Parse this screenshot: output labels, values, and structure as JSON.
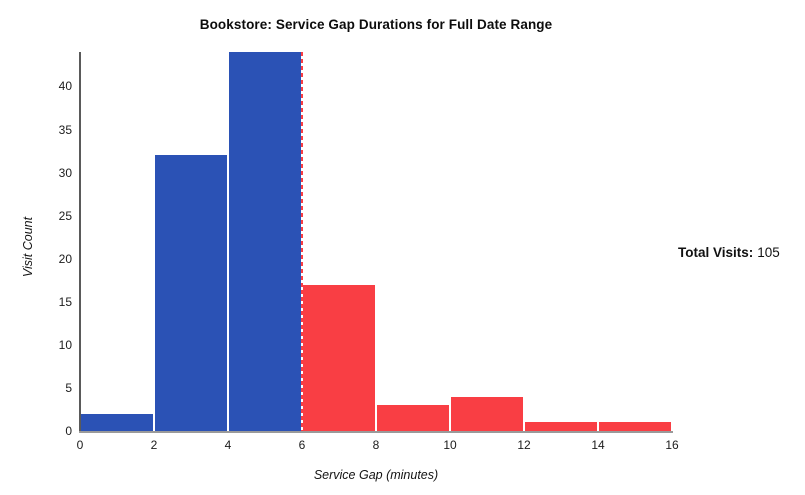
{
  "chart_data": {
    "type": "bar",
    "subtype": "histogram",
    "title": "Bookstore: Service Gap Durations for Full Date Range",
    "xlabel": "Service Gap (minutes)",
    "ylabel": "Visit Count",
    "bin_edges": [
      0,
      2,
      4,
      6,
      8,
      10,
      12,
      14,
      16
    ],
    "categories": [
      "0-2",
      "2-4",
      "4-6",
      "6-8",
      "8-10",
      "10-12",
      "12-14",
      "14-16"
    ],
    "values": [
      2,
      32,
      44,
      17,
      3,
      4,
      1,
      1
    ],
    "bar_colors": [
      "#2b52b5",
      "#2b52b5",
      "#2b52b5",
      "#f93e44",
      "#f93e44",
      "#f93e44",
      "#f93e44",
      "#f93e44"
    ],
    "xlim": [
      0,
      16
    ],
    "ylim": [
      0,
      44
    ],
    "xticks": [
      0,
      2,
      4,
      6,
      8,
      10,
      12,
      14,
      16
    ],
    "yticks": [
      0,
      5,
      10,
      15,
      20,
      25,
      30,
      35,
      40
    ],
    "grid": false,
    "legend": null,
    "threshold_line": {
      "x": 6,
      "style": "dashed",
      "color": "#f93e44"
    }
  },
  "annotation": {
    "label": "Total Visits:",
    "value": "105"
  },
  "colors": {
    "blue_bar": "#2b52b5",
    "red_bar": "#f93e44",
    "y_axis": "#5a5a5a",
    "x_axis": "#9a9a9a",
    "text": "#111111"
  }
}
